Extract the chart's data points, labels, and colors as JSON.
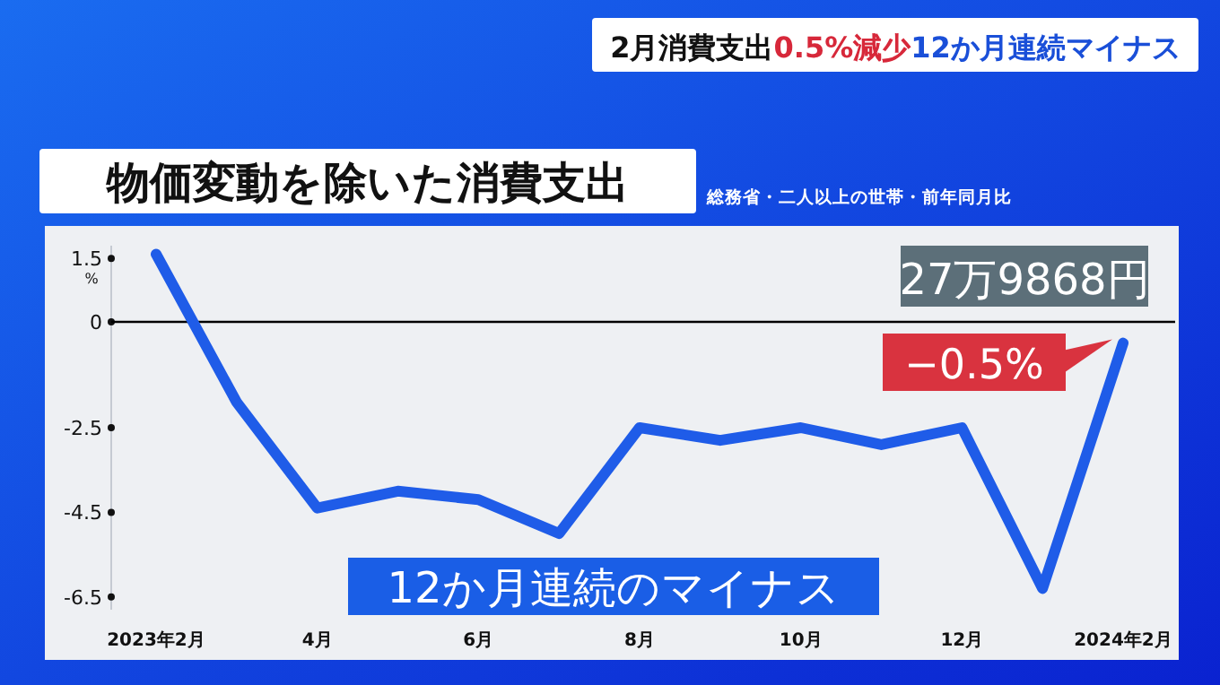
{
  "chart_data": {
    "type": "line",
    "title": "物価変動を除いた消費支出",
    "subtitle": "総務省・二人以上の世帯・前年同月比",
    "ylabel": "%",
    "categories": [
      "2023年2月",
      null,
      "4月",
      null,
      "6月",
      null,
      "8月",
      null,
      "10月",
      null,
      "12月",
      null,
      "2024年2月"
    ],
    "series": [
      {
        "color": "#1f5ce8",
        "values": [
          1.6,
          -1.9,
          -4.4,
          -4.0,
          -4.2,
          -5.0,
          -2.5,
          -2.8,
          -2.5,
          -2.9,
          -2.5,
          -6.3,
          -0.5
        ]
      }
    ],
    "ylim": [
      -6.8,
      1.8
    ],
    "yticks": [
      1.5,
      0,
      -2.5,
      -4.5,
      -6.5
    ],
    "ref_lines": [
      {
        "axis": "y",
        "value": 0,
        "color": "#000000"
      }
    ],
    "annotations": [
      "2月消費支出",
      "0.5%減少",
      "12か月連続マイナス",
      "27万9868円",
      {
        "text": "−0.5%",
        "x": "2024年2月",
        "y": -0.5
      },
      "12か月連続のマイナス"
    ],
    "marker": "none",
    "line_style": "solid",
    "grid": false
  }
}
